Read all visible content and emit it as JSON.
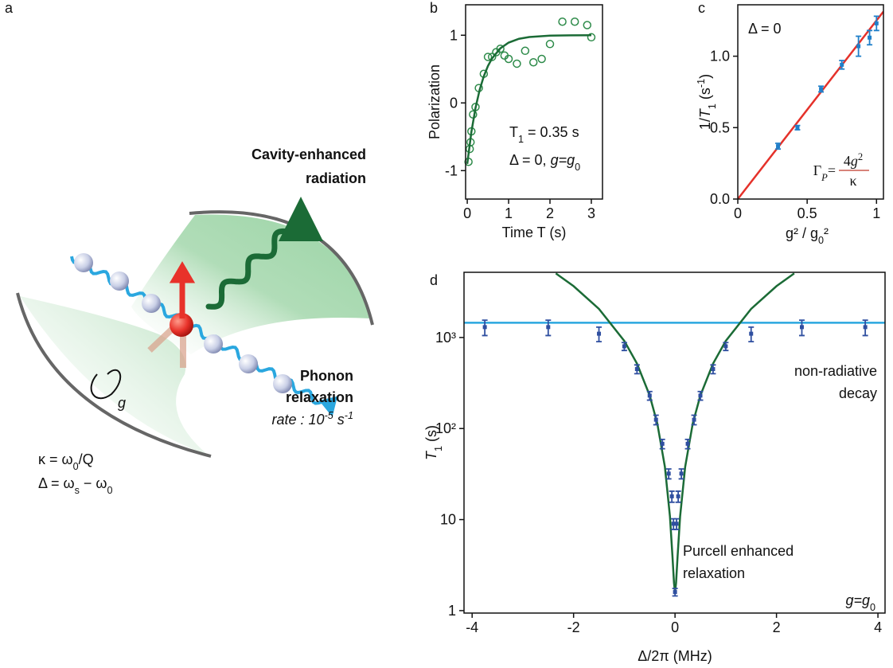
{
  "panel_labels": [
    "a",
    "b",
    "c",
    "d"
  ],
  "diagram": {
    "radiation": [
      "Cavity-enhanced",
      "radiation"
    ],
    "phonon": [
      "Phonon",
      "relaxation"
    ],
    "rate": {
      "parts": [
        {
          "t": "rate : 10"
        },
        {
          "t": "-5",
          "s": "sup"
        },
        {
          "t": " s"
        },
        {
          "t": "-1",
          "s": "sup"
        }
      ]
    },
    "kappa": {
      "parts": [
        {
          "t": "κ = ω"
        },
        {
          "t": "0",
          "s": "sub"
        },
        {
          "t": "/Q"
        }
      ]
    },
    "delta": {
      "parts": [
        {
          "t": "Δ = ω"
        },
        {
          "t": "s",
          "s": "sub"
        },
        {
          "t": " − ω"
        },
        {
          "t": "0",
          "s": "sub"
        }
      ]
    },
    "coupling": "g"
  },
  "chart_data": [
    {
      "type": "scatter",
      "x_label": "Time T (s)",
      "y_label": "Polarization",
      "xlim": [
        -0.04,
        3.27
      ],
      "ylim": [
        -1.42,
        1.45
      ],
      "xticks": [
        0,
        1,
        2,
        3
      ],
      "yticks": [
        -1,
        0,
        1
      ],
      "series": [
        {
          "kind": "points",
          "marker": "open-circle",
          "color": "#2e8b4a",
          "x": [
            0.03,
            0.06,
            0.08,
            0.1,
            0.14,
            0.2,
            0.28,
            0.4,
            0.5,
            0.6,
            0.7,
            0.8,
            0.9,
            1.0,
            1.2,
            1.4,
            1.6,
            1.8,
            2.0,
            2.3,
            2.6,
            2.9,
            3.0
          ],
          "values": [
            -0.87,
            -0.68,
            -0.58,
            -0.42,
            -0.17,
            -0.06,
            0.22,
            0.43,
            0.68,
            0.68,
            0.75,
            0.8,
            0.7,
            0.65,
            0.58,
            0.77,
            0.6,
            0.65,
            0.87,
            1.2,
            1.2,
            1.15,
            0.97
          ]
        },
        {
          "kind": "line",
          "color": "#1b6b36",
          "x": [
            0,
            0.1,
            0.2,
            0.3,
            0.4,
            0.5,
            0.6,
            0.8,
            1.0,
            1.25,
            1.5,
            2,
            2.5,
            3
          ],
          "values": [
            -0.9,
            -0.428,
            -0.073,
            0.194,
            0.394,
            0.545,
            0.658,
            0.807,
            0.891,
            0.947,
            0.974,
            0.994,
            0.998,
            1.0
          ]
        }
      ],
      "annotations": [
        {
          "color": "#222222",
          "parts": [
            {
              "t": "T"
            },
            {
              "t": "1",
              "s": "sub"
            },
            {
              "t": " = 0.35 s"
            }
          ]
        },
        {
          "color": "#9a9a9a",
          "parts": [
            {
              "t": "Δ = 0, "
            },
            {
              "t": "g=g",
              "s": "i"
            },
            {
              "t": "0",
              "s": "sub"
            }
          ]
        }
      ]
    },
    {
      "type": "scatter",
      "x_label": {
        "parts": [
          {
            "t": "g² / g"
          },
          {
            "t": "0",
            "s": "sub"
          },
          {
            "t": "²"
          }
        ]
      },
      "y_label": {
        "parts": [
          {
            "t": "1/"
          },
          {
            "t": "T",
            "s": "i"
          },
          {
            "t": "1",
            "s": "sub"
          },
          {
            "t": " (s"
          },
          {
            "t": "-1",
            "s": "sup"
          },
          {
            "t": ")"
          }
        ]
      },
      "xlim": [
        0,
        1.05
      ],
      "ylim": [
        0,
        1.36
      ],
      "xticks": [
        0,
        0.5,
        1
      ],
      "yticks": [
        {
          "value": 0,
          "label": "0.0"
        },
        0.5,
        {
          "value": 1,
          "label": "1.0"
        }
      ],
      "series": [
        {
          "kind": "line",
          "color": "#e5312a",
          "x": [
            0,
            1.05
          ],
          "values": [
            0,
            1.3125
          ]
        },
        {
          "kind": "points",
          "marker": "errorbar",
          "color": "#1f7fc9",
          "x": [
            0.29,
            0.43,
            0.6,
            0.75,
            0.87,
            0.95,
            1.0
          ],
          "values": [
            0.37,
            0.5,
            0.77,
            0.94,
            1.07,
            1.13,
            1.23
          ],
          "errors": [
            0.02,
            0.015,
            0.02,
            0.03,
            0.07,
            0.05,
            0.05
          ]
        }
      ],
      "annotations": [
        {
          "color": "#9a9a9a",
          "parts": [
            {
              "t": "Δ = 0"
            }
          ]
        }
      ],
      "formula": {
        "color": "#c0392b",
        "lhs": {
          "parts": [
            {
              "t": "Γ"
            },
            {
              "t": "P",
              "s": "sub i"
            },
            {
              "t": "="
            }
          ]
        },
        "num": {
          "parts": [
            {
              "t": "4"
            },
            {
              "t": "g",
              "s": "i"
            },
            {
              "t": "2",
              "s": "sup"
            }
          ]
        },
        "den": {
          "parts": [
            {
              "t": "κ"
            }
          ]
        }
      }
    },
    {
      "type": "scatter",
      "ylog": true,
      "x_label": "Δ/2π  (MHz)",
      "y_label": {
        "parts": [
          {
            "t": "T",
            "s": "i"
          },
          {
            "t": "1",
            "s": "sub"
          },
          {
            "t": " (s)"
          }
        ]
      },
      "xlim": [
        -4.16,
        4.14
      ],
      "ylim": [
        0.94,
        5200
      ],
      "xticks": [
        -4,
        -2,
        0,
        2,
        4
      ],
      "yticks": [
        1,
        10,
        {
          "value": 100,
          "label": "10²"
        },
        {
          "value": 1000,
          "label": "10³"
        }
      ],
      "series": [
        {
          "kind": "line",
          "color": "#2aa7df",
          "x": [
            -4.16,
            4.14
          ],
          "values": [
            1450,
            1450
          ]
        },
        {
          "kind": "line",
          "color": "#1b6b36",
          "x": [
            -2.35,
            -2,
            -1.5,
            -1,
            -0.75,
            -0.5,
            -0.35,
            -0.2,
            -0.1,
            -0.05,
            -0.02,
            0,
            0.02,
            0.05,
            0.1,
            0.2,
            0.35,
            0.5,
            0.75,
            1,
            1.5,
            2,
            2.35
          ],
          "values": [
            5059,
            3664,
            2062,
            917,
            517,
            231,
            114,
            38,
            10.8,
            3.9,
            2.0,
            1.6,
            2.0,
            3.9,
            10.8,
            38,
            114,
            231,
            517,
            917,
            2062,
            3664,
            5059
          ]
        },
        {
          "kind": "points",
          "marker": "errorbar",
          "color": "#2f4fa0",
          "x": [
            -3.75,
            -2.5,
            -1.5,
            -1,
            -0.75,
            -0.5,
            -0.375,
            -0.25,
            -0.125,
            -0.0625,
            -0.03,
            0,
            0.03,
            0.0625,
            0.125,
            0.25,
            0.375,
            0.5,
            0.75,
            1,
            1.5,
            2.5,
            3.75
          ],
          "values": [
            1300,
            1300,
            1100,
            800,
            450,
            230,
            125,
            68,
            32,
            18,
            9,
            1.6,
            9,
            18,
            32,
            68,
            125,
            230,
            450,
            800,
            1100,
            1300,
            1300
          ],
          "errors": [
            250,
            250,
            200,
            80,
            50,
            25,
            15,
            8,
            4,
            2.5,
            1.2,
            0.15,
            1.2,
            2.5,
            4,
            8,
            15,
            25,
            50,
            80,
            200,
            250,
            250
          ]
        }
      ],
      "annotations": [
        {
          "color": "#2aa7df",
          "parts": [
            {
              "t": "non-radiative"
            }
          ]
        },
        {
          "color": "#2aa7df",
          "parts": [
            {
              "t": "decay"
            }
          ]
        },
        {
          "color": "#1b6b36",
          "parts": [
            {
              "t": "Purcell enhanced"
            }
          ]
        },
        {
          "color": "#1b6b36",
          "parts": [
            {
              "t": "relaxation"
            }
          ]
        },
        {
          "color": "#9a9a9a",
          "parts": [
            {
              "t": "g=g",
              "s": "i"
            },
            {
              "t": "0",
              "s": "sub"
            }
          ]
        }
      ]
    }
  ]
}
